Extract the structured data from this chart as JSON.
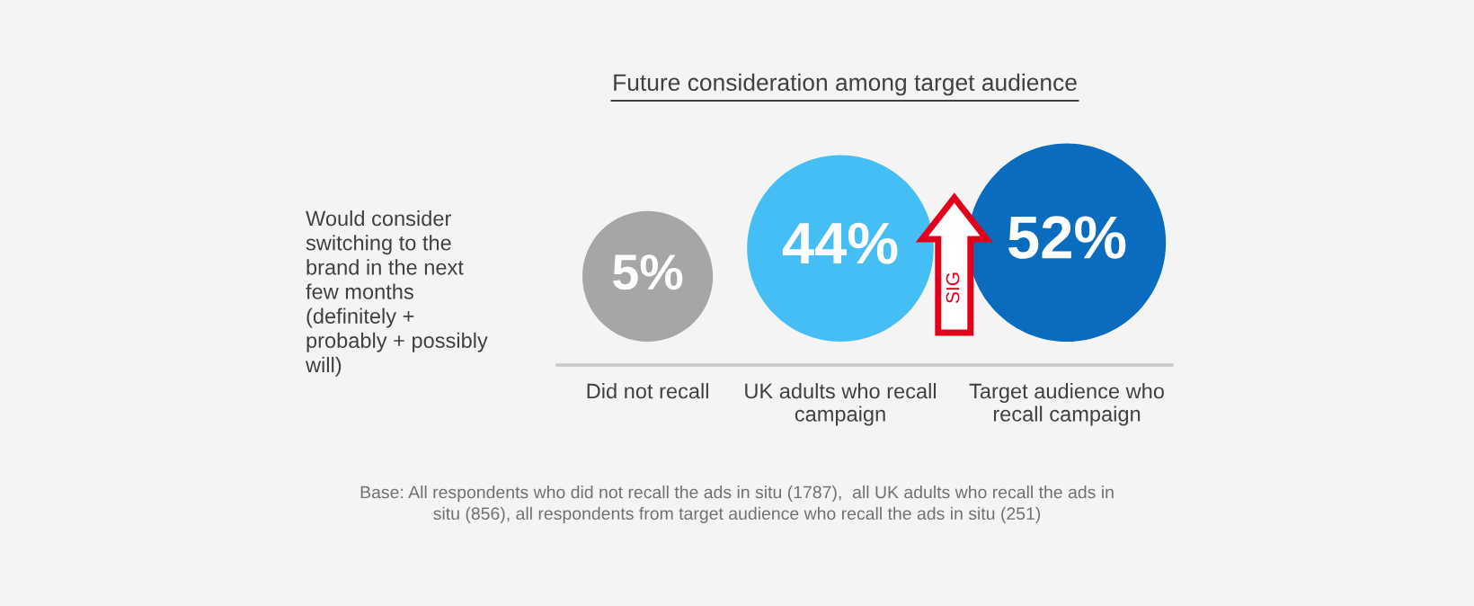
{
  "chart_data": {
    "type": "other",
    "title": "Future consideration among target audience",
    "ylabel": "Would consider\nswitching to the\nbrand in the next\nfew months\n(definitely +\nprobably + possibly\nwill)",
    "categories": [
      "Did not recall",
      "UK adults who recall\ncampaign",
      "Target audience who\nrecall campaign"
    ],
    "values": [
      5,
      44,
      52
    ],
    "value_labels": [
      "5%",
      "44%",
      "52%"
    ],
    "colors": [
      "#a6a6a6",
      "#45bdf5",
      "#0a6cbf"
    ],
    "annotations": [
      "SIG",
      "Base: All respondents who did not recall the ads in situ (1787),  all UK adults who recall the ads in\nsitu (856), all respondents from target audience who recall the ads in situ (251)"
    ]
  }
}
